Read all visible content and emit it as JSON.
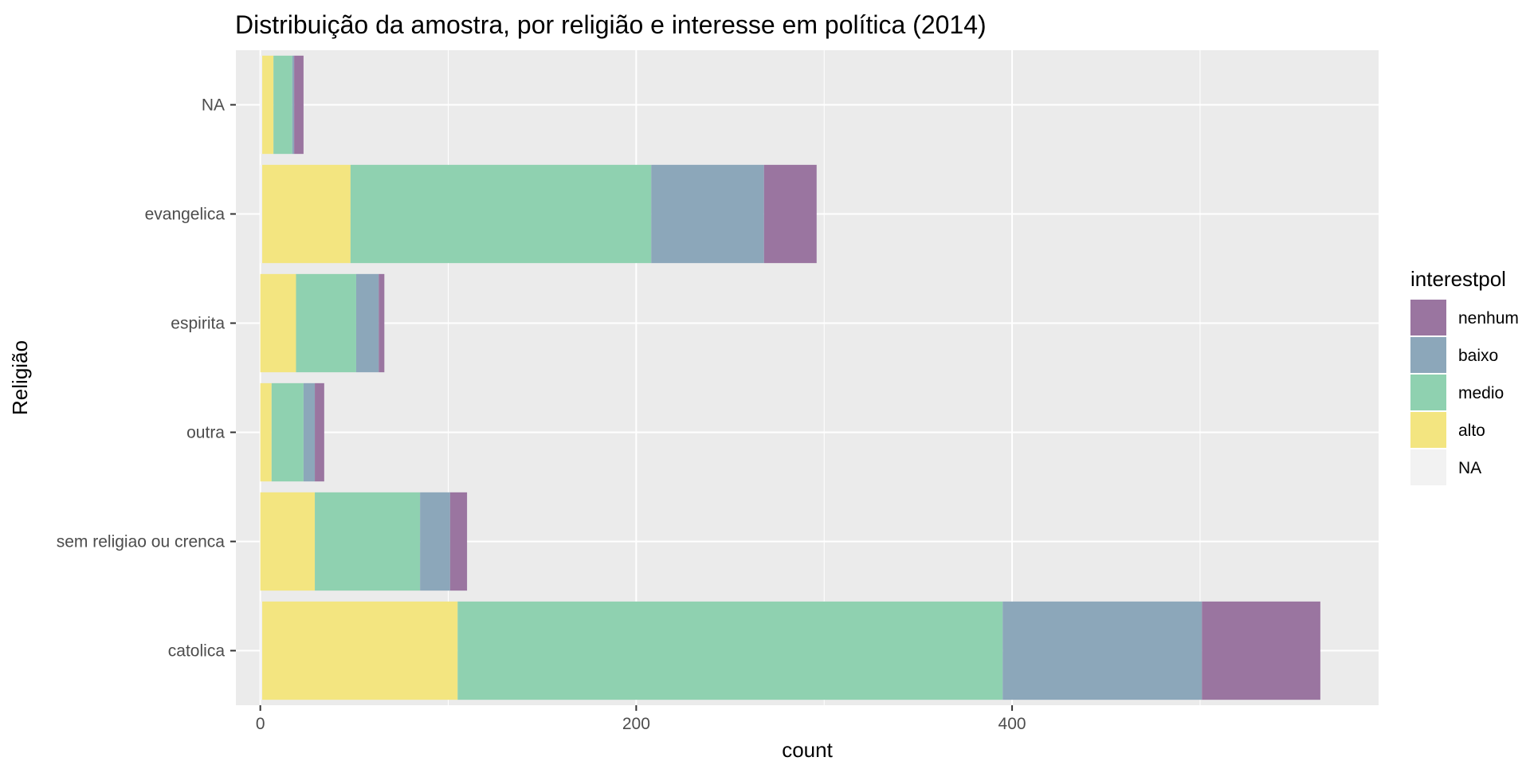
{
  "chart_data": {
    "type": "bar",
    "orientation": "horizontal",
    "stacked": true,
    "title": "Distribuição da amostra, por religião e interesse em política (2014)",
    "xlabel": "count",
    "ylabel": "Religião",
    "categories": [
      "catolica",
      "sem religiao ou crenca",
      "outra",
      "espirita",
      "evangelica",
      "NA"
    ],
    "xlim": [
      -13,
      595
    ],
    "xticks": [
      0,
      200,
      400
    ],
    "grid": true,
    "legend_title": "interestpol",
    "legend_position": "right",
    "legend_order": [
      "nenhum",
      "baixo",
      "medio",
      "alto",
      "NA"
    ],
    "series": [
      {
        "name": "NA",
        "color": "#f2f2f2",
        "values": [
          1,
          0,
          0,
          0,
          1,
          1
        ]
      },
      {
        "name": "alto",
        "color": "#f3e580",
        "values": [
          104,
          29,
          6,
          19,
          47,
          6
        ]
      },
      {
        "name": "medio",
        "color": "#8fd1b0",
        "values": [
          290,
          56,
          17,
          32,
          160,
          10
        ]
      },
      {
        "name": "baixo",
        "color": "#8ca7ba",
        "values": [
          106,
          16,
          6,
          12,
          60,
          1
        ]
      },
      {
        "name": "nenhum",
        "color": "#9a75a0",
        "values": [
          63,
          9,
          5,
          3,
          28,
          5
        ]
      }
    ]
  }
}
